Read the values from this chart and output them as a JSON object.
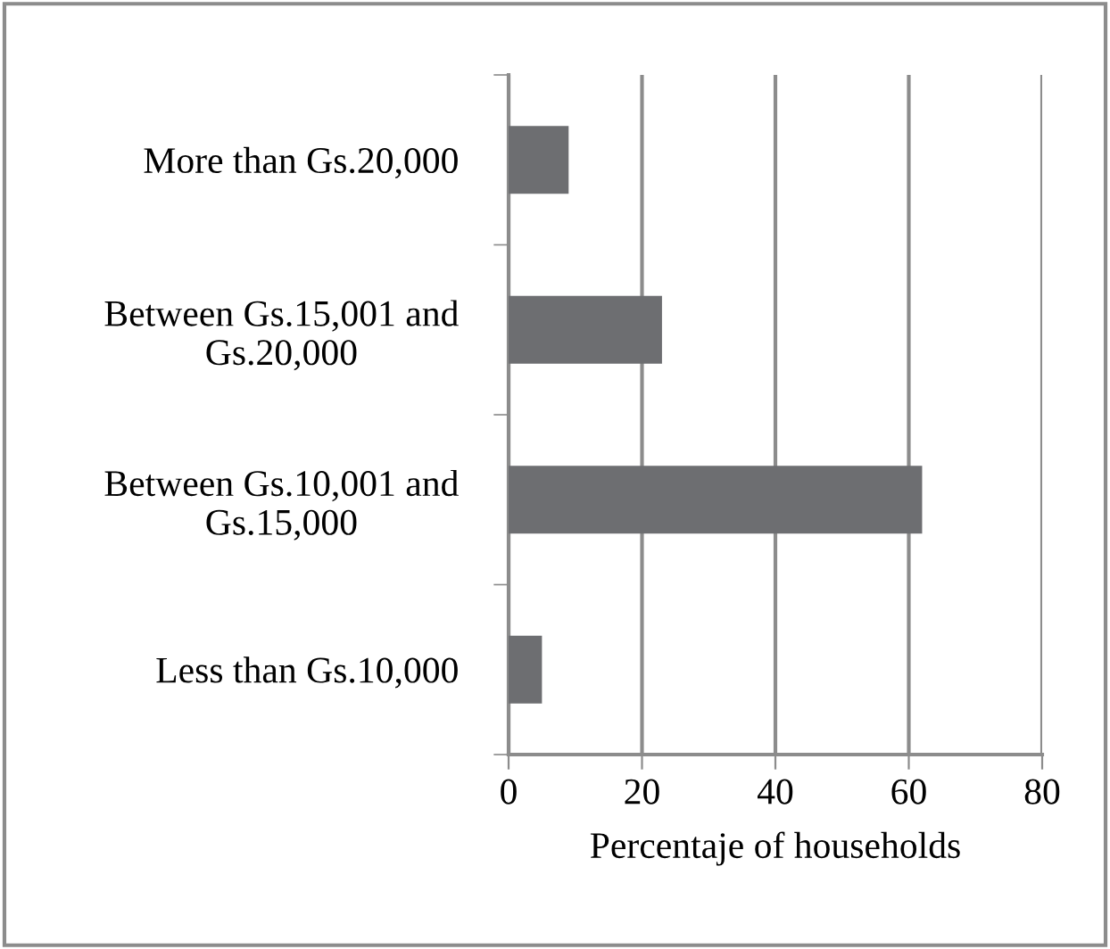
{
  "chart_data": {
    "type": "bar",
    "orientation": "horizontal",
    "categories": [
      "More than Gs.20,000",
      "Between Gs.15,001 and Gs.20,000",
      "Between Gs.10,001 and Gs.15,000",
      "Less than Gs.10,000"
    ],
    "values": [
      9,
      23,
      62,
      5
    ],
    "color": "#6d6e71",
    "xlabel": "Percentaje of households",
    "xlim": [
      0,
      80
    ],
    "xticks": [
      0,
      20,
      40,
      60,
      80
    ],
    "grid": "x",
    "legend": false
  }
}
